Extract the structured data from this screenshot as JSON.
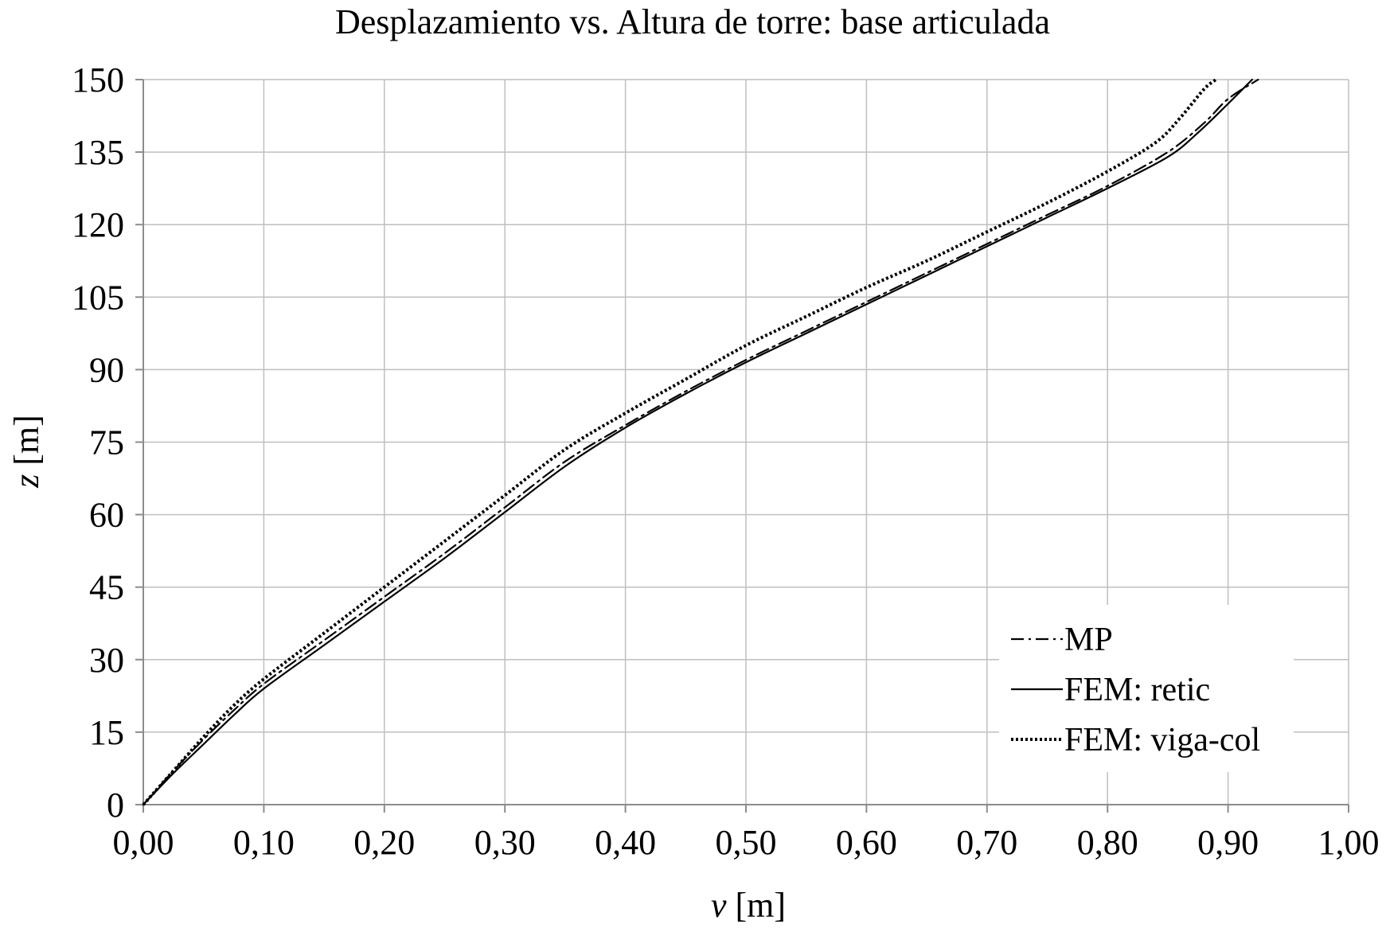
{
  "chart_data": {
    "type": "line",
    "title": "Desplazamiento vs. Altura de torre: base articulada",
    "xlabel_italic": "v",
    "xlabel_rest": " [m]",
    "ylabel_italic": "z",
    "ylabel_rest": " [m]",
    "xlim": [
      0,
      1.0
    ],
    "ylim": [
      0,
      150
    ],
    "x_ticks": [
      "0,00",
      "0,10",
      "0,20",
      "0,30",
      "0,40",
      "0,50",
      "0,60",
      "0,70",
      "0,80",
      "0,90",
      "1,00"
    ],
    "y_ticks": [
      "0",
      "15",
      "30",
      "45",
      "60",
      "75",
      "90",
      "105",
      "120",
      "135",
      "150"
    ],
    "grid": true,
    "legend_position": "bottom-right",
    "series": [
      {
        "name": "MP",
        "style": "dashdot",
        "color": "#000000",
        "points": [
          [
            0.0,
            0
          ],
          [
            0.025,
            7
          ],
          [
            0.05,
            13.5
          ],
          [
            0.075,
            19.5
          ],
          [
            0.1,
            25
          ],
          [
            0.15,
            34
          ],
          [
            0.2,
            43
          ],
          [
            0.25,
            52
          ],
          [
            0.3,
            61.5
          ],
          [
            0.35,
            71
          ],
          [
            0.4,
            78.5
          ],
          [
            0.45,
            85.5
          ],
          [
            0.5,
            92
          ],
          [
            0.55,
            98
          ],
          [
            0.6,
            104
          ],
          [
            0.65,
            110
          ],
          [
            0.7,
            116
          ],
          [
            0.75,
            122
          ],
          [
            0.8,
            128
          ],
          [
            0.85,
            135
          ],
          [
            0.88,
            141
          ],
          [
            0.9,
            146
          ],
          [
            0.925,
            150
          ]
        ]
      },
      {
        "name": "FEM: retic",
        "style": "solid",
        "color": "#000000",
        "points": [
          [
            0.0,
            0
          ],
          [
            0.025,
            6.5
          ],
          [
            0.05,
            12.5
          ],
          [
            0.075,
            18.5
          ],
          [
            0.1,
            24
          ],
          [
            0.15,
            33
          ],
          [
            0.2,
            42
          ],
          [
            0.25,
            51
          ],
          [
            0.3,
            60.5
          ],
          [
            0.35,
            70
          ],
          [
            0.4,
            78
          ],
          [
            0.45,
            85
          ],
          [
            0.5,
            91.5
          ],
          [
            0.55,
            97.5
          ],
          [
            0.6,
            103.5
          ],
          [
            0.65,
            109.5
          ],
          [
            0.7,
            115.5
          ],
          [
            0.75,
            121.5
          ],
          [
            0.8,
            127.5
          ],
          [
            0.85,
            134
          ],
          [
            0.875,
            139
          ],
          [
            0.9,
            145
          ],
          [
            0.92,
            150
          ]
        ]
      },
      {
        "name": "FEM: viga-col",
        "style": "dotted",
        "color": "#000000",
        "points": [
          [
            0.0,
            0
          ],
          [
            0.025,
            7
          ],
          [
            0.05,
            14
          ],
          [
            0.075,
            20.5
          ],
          [
            0.1,
            26
          ],
          [
            0.15,
            35.5
          ],
          [
            0.2,
            45
          ],
          [
            0.25,
            54.5
          ],
          [
            0.3,
            64
          ],
          [
            0.35,
            73.5
          ],
          [
            0.4,
            81
          ],
          [
            0.45,
            88
          ],
          [
            0.5,
            95
          ],
          [
            0.55,
            101
          ],
          [
            0.6,
            107
          ],
          [
            0.65,
            112.5
          ],
          [
            0.7,
            118.5
          ],
          [
            0.75,
            124.5
          ],
          [
            0.8,
            131
          ],
          [
            0.84,
            137
          ],
          [
            0.86,
            142
          ],
          [
            0.88,
            148
          ],
          [
            0.89,
            150
          ]
        ]
      }
    ]
  }
}
